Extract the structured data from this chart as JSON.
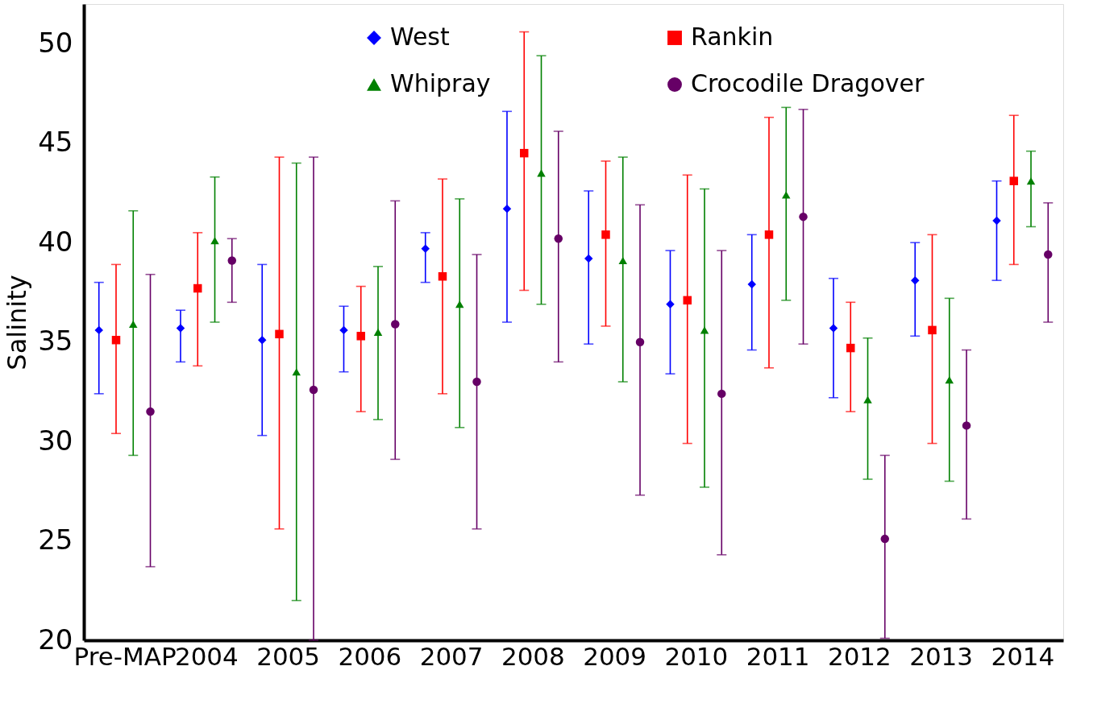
{
  "chart_data": {
    "type": "scatter",
    "ylabel": "Salinity",
    "categories": [
      "Pre-MAP",
      "2004",
      "2005",
      "2006",
      "2007",
      "2008",
      "2009",
      "2010",
      "2011",
      "2012",
      "2013",
      "2014"
    ],
    "ylim": [
      20,
      52
    ],
    "yticks": [
      20,
      25,
      30,
      35,
      40,
      45,
      50
    ],
    "grid": false,
    "legend": "top",
    "series": [
      {
        "name": "West",
        "color": "#0000ff",
        "marker": "diamond",
        "values": [
          35.6,
          35.7,
          35.1,
          35.6,
          39.7,
          41.7,
          39.2,
          36.9,
          37.9,
          35.7,
          38.1,
          41.1
        ],
        "errors": [
          [
            32.4,
            38.0
          ],
          [
            34.0,
            36.6
          ],
          [
            30.3,
            38.9
          ],
          [
            33.5,
            36.8
          ],
          [
            38.0,
            40.5
          ],
          [
            36.0,
            46.6
          ],
          [
            34.9,
            42.6
          ],
          [
            33.4,
            39.6
          ],
          [
            34.6,
            40.4
          ],
          [
            32.2,
            38.2
          ],
          [
            35.3,
            40.0
          ],
          [
            38.1,
            43.1
          ]
        ]
      },
      {
        "name": "Rankin",
        "color": "#ff0000",
        "marker": "square",
        "values": [
          35.1,
          37.7,
          35.4,
          35.3,
          38.3,
          44.5,
          40.4,
          37.1,
          40.4,
          34.7,
          35.6,
          43.1
        ],
        "errors": [
          [
            30.4,
            38.9
          ],
          [
            33.8,
            40.5
          ],
          [
            25.6,
            44.3
          ],
          [
            31.5,
            37.8
          ],
          [
            32.4,
            43.2
          ],
          [
            37.6,
            50.6
          ],
          [
            35.8,
            44.1
          ],
          [
            29.9,
            43.4
          ],
          [
            33.7,
            46.3
          ],
          [
            31.5,
            37.0
          ],
          [
            29.9,
            40.4
          ],
          [
            38.9,
            46.4
          ]
        ]
      },
      {
        "name": "Whipray",
        "color": "#008000",
        "marker": "triangle",
        "values": [
          35.9,
          40.1,
          33.5,
          35.5,
          36.9,
          43.5,
          39.1,
          35.6,
          42.4,
          32.1,
          33.1,
          43.1
        ],
        "errors": [
          [
            29.3,
            41.6
          ],
          [
            36.0,
            43.3
          ],
          [
            22.0,
            44.0
          ],
          [
            31.1,
            38.8
          ],
          [
            30.7,
            42.2
          ],
          [
            36.9,
            49.4
          ],
          [
            33.0,
            44.3
          ],
          [
            27.7,
            42.7
          ],
          [
            37.1,
            46.8
          ],
          [
            28.1,
            35.2
          ],
          [
            28.0,
            37.2
          ],
          [
            40.8,
            44.6
          ]
        ]
      },
      {
        "name": "Crocodile Dragover",
        "color": "#660066",
        "marker": "circle",
        "values": [
          31.5,
          39.1,
          32.6,
          35.9,
          33.0,
          40.2,
          35.0,
          32.4,
          41.3,
          25.1,
          30.8,
          39.4
        ],
        "errors": [
          [
            23.7,
            38.4
          ],
          [
            37.0,
            40.2
          ],
          [
            20.0,
            44.3
          ],
          [
            29.1,
            42.1
          ],
          [
            25.6,
            39.4
          ],
          [
            34.0,
            45.6
          ],
          [
            27.3,
            41.9
          ],
          [
            24.3,
            39.6
          ],
          [
            34.9,
            46.7
          ],
          [
            20.1,
            29.3
          ],
          [
            26.1,
            34.6
          ],
          [
            36.0,
            42.0
          ]
        ]
      }
    ]
  }
}
